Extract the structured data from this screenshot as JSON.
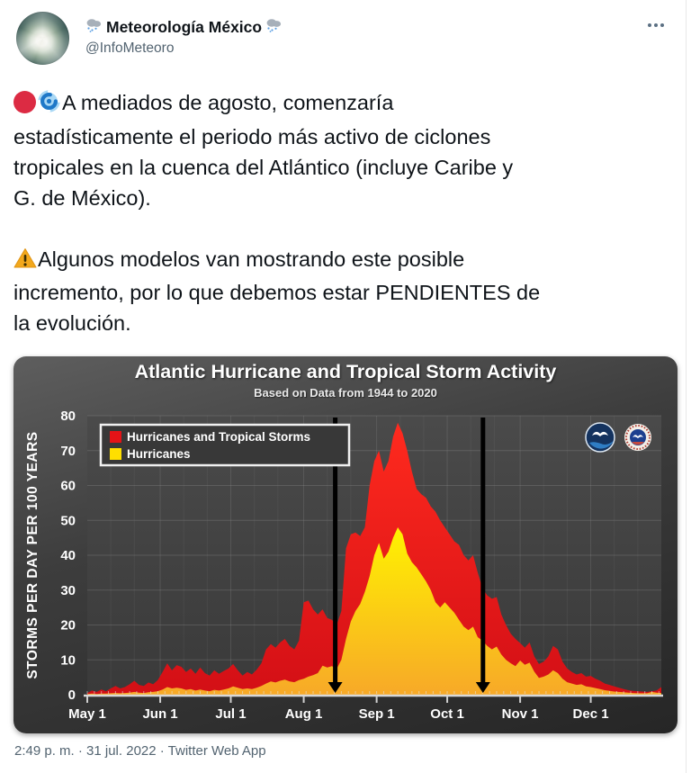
{
  "header": {
    "display_name": "Meteorología México",
    "handle": "@InfoMeteoro"
  },
  "icons": {
    "name_decoration": "rain-cloud",
    "more": "three-dots-horizontal",
    "tweet_leading": [
      "red-circle",
      "cyclone"
    ],
    "tweet_warning": "warning-triangle",
    "chart_logos": [
      "noaa-logo",
      "nws-logo"
    ]
  },
  "tweet": {
    "para1": "A mediados de agosto, comenzaría\nestadísticamente el periodo más activo de ciclones\ntropicales en la cuenca del Atlántico (incluye Caribe y\nG. de México).",
    "para2": "Algunos modelos van mostrando este posible\nincremento, por lo que debemos estar PENDIENTES de\nla evolución."
  },
  "footer": {
    "meta": "2:49 p. m. · 31 jul. 2022 · Twitter Web App"
  },
  "colors": {
    "text": "#0f1419",
    "muted": "#536471",
    "red_top": "#ff2a1e",
    "red_bottom": "#d30f16",
    "yellow_top": "#fff200",
    "yellow_bottom": "#f7a928",
    "arrow": "#000000",
    "emoji_red_circle": "#dc2b43",
    "emoji_cyclone_blue": "#1f78c8",
    "emoji_warning_yellow": "#f2a81d",
    "cloud_gray": "#a7b0ba",
    "rain_blue": "#5b9fe3"
  },
  "chart_data": {
    "type": "area",
    "title": "Atlantic Hurricane and Tropical Storm Activity",
    "subtitle": "Based on Data from 1944 to 2020",
    "ylabel": "STORMS PER DAY PER 100 YEARS",
    "ylim": [
      0,
      80
    ],
    "yticks": [
      0,
      10,
      20,
      30,
      40,
      50,
      60,
      70,
      80
    ],
    "xtick_labels": [
      "May 1",
      "Jun 1",
      "Jul 1",
      "Aug 1",
      "Sep 1",
      "Oct 1",
      "Nov 1",
      "Dec 1"
    ],
    "month_start_days": [
      0,
      31,
      61,
      92,
      123,
      153,
      184,
      214
    ],
    "x_unit": "days since May 1",
    "x_range_days": [
      0,
      244
    ],
    "x_step_days": 2,
    "grid": true,
    "legend_position": "top-left",
    "series": [
      {
        "name": "Hurricanes and Tropical Storms",
        "color": "#e41317",
        "values": [
          0.5,
          1.2,
          0.8,
          1.5,
          1.0,
          1.8,
          2.5,
          1.8,
          2.2,
          3.0,
          4.0,
          2.8,
          2.5,
          3.5,
          3.0,
          4.2,
          6.5,
          9.0,
          7.0,
          8.5,
          8.0,
          6.5,
          7.5,
          6.0,
          7.8,
          6.2,
          5.5,
          7.0,
          6.0,
          6.8,
          7.5,
          8.8,
          7.0,
          5.5,
          6.5,
          5.8,
          7.2,
          9.0,
          13.0,
          14.5,
          13.5,
          15.0,
          16.0,
          14.0,
          13.0,
          15.5,
          26.5,
          27.0,
          24.5,
          23.0,
          24.5,
          22.0,
          21.5,
          20.0,
          24.0,
          42.0,
          46.0,
          46.5,
          45.5,
          48.0,
          60.0,
          67.0,
          70.0,
          64.0,
          67.0,
          74.0,
          78.0,
          75.0,
          70.0,
          64.0,
          59.0,
          57.5,
          56.5,
          54.0,
          52.5,
          50.0,
          48.0,
          46.0,
          44.0,
          43.0,
          40.0,
          38.5,
          40.0,
          35.0,
          30.5,
          28.5,
          27.5,
          28.0,
          23.0,
          20.0,
          17.5,
          16.0,
          14.8,
          13.5,
          15.0,
          11.0,
          8.8,
          9.5,
          11.0,
          14.0,
          13.0,
          9.5,
          7.5,
          6.5,
          5.8,
          6.2,
          5.2,
          5.4,
          4.6,
          4.0,
          3.2,
          2.8,
          2.4,
          2.0,
          1.6,
          1.3,
          1.1,
          1.0,
          0.9,
          0.8,
          1.0,
          1.2,
          2.2
        ]
      },
      {
        "name": "Hurricanes",
        "color": "#ffdf00",
        "values": [
          0.2,
          0.3,
          0.2,
          0.3,
          0.3,
          0.4,
          0.5,
          0.4,
          0.5,
          0.6,
          0.8,
          0.6,
          0.5,
          0.7,
          0.8,
          1.0,
          1.5,
          2.2,
          1.8,
          2.0,
          1.8,
          1.4,
          1.6,
          1.2,
          1.5,
          1.2,
          1.0,
          1.4,
          1.2,
          1.5,
          1.8,
          2.4,
          2.0,
          1.6,
          1.8,
          1.6,
          2.0,
          2.5,
          3.2,
          3.8,
          3.5,
          4.0,
          4.3,
          3.8,
          3.6,
          4.2,
          4.6,
          5.2,
          5.6,
          6.2,
          8.3,
          7.8,
          8.2,
          7.4,
          10.0,
          16.0,
          21.0,
          24.0,
          26.0,
          29.5,
          34.0,
          40.0,
          43.5,
          39.0,
          41.0,
          45.0,
          48.0,
          46.0,
          40.5,
          38.0,
          36.5,
          34.5,
          32.5,
          30.0,
          26.5,
          25.0,
          26.5,
          25.0,
          23.5,
          21.5,
          19.5,
          18.5,
          19.5,
          16.5,
          15.5,
          14.0,
          13.0,
          13.8,
          11.5,
          10.0,
          9.0,
          8.2,
          9.8,
          8.6,
          9.2,
          6.6,
          4.8,
          5.2,
          5.8,
          7.0,
          6.2,
          4.6,
          3.6,
          3.2,
          2.8,
          3.0,
          2.4,
          2.2,
          1.9,
          1.6,
          1.3,
          1.1,
          0.9,
          0.8,
          0.7,
          0.6,
          0.5,
          0.4,
          0.4,
          0.4,
          0.8,
          0.6,
          0.5
        ]
      }
    ],
    "annotations": {
      "arrow_days": [
        105.4,
        168.2
      ],
      "arrow_meaning": "vertical black arrows marking mid-August and mid-October"
    }
  }
}
